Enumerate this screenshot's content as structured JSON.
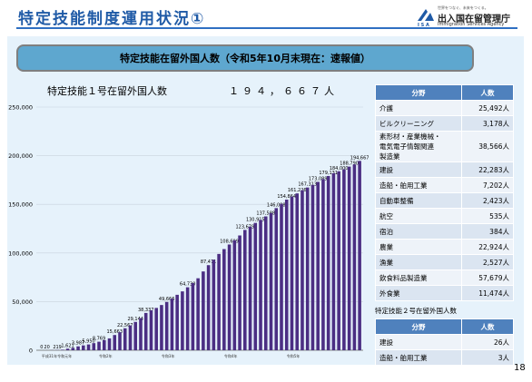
{
  "header": {
    "title": "特定技能制度運用状況①"
  },
  "logo": {
    "tagline": "世界をつなぐ、未来をつくる。",
    "name": "出入国在留管理庁",
    "english": "Immigration Services Agency",
    "abbr": "I S A"
  },
  "banner": "特定技能在留外国人数（令和5年10月末現在：速報値）",
  "subtitle": {
    "label": "特定技能１号在留外国人数",
    "value": "１９４，６６７人"
  },
  "page_number": "18",
  "chart_data": {
    "type": "bar",
    "title": "",
    "ylim": [
      0,
      250000
    ],
    "yticks": [
      "0",
      "50,000",
      "100,000",
      "150,000",
      "200,000",
      "250,000"
    ],
    "x_period_labels": [
      "平成31年",
      "令和元年",
      "令和2年",
      "令和3年",
      "令和4年",
      "令和5年"
    ],
    "x_period_index": [
      0,
      3,
      11,
      23,
      35,
      47
    ],
    "values": [
      0,
      20,
      100,
      219,
      520,
      1621,
      2500,
      3987,
      5000,
      5950,
      7300,
      8769,
      10400,
      12200,
      15663,
      18500,
      22567,
      25500,
      29144,
      33000,
      38337,
      41000,
      43500,
      46500,
      49666,
      53000,
      57000,
      60500,
      64730,
      69000,
      74000,
      81000,
      87471,
      93000,
      99000,
      104000,
      108699,
      113000,
      118000,
      123679,
      127000,
      130915,
      134000,
      137588,
      141000,
      146098,
      150500,
      154864,
      158000,
      161226,
      164500,
      167313,
      170000,
      173089,
      176000,
      179131,
      182000,
      184000,
      186000,
      188790,
      191000,
      194667
    ],
    "labels": {
      "0": "0",
      "1": "20",
      "3": "219",
      "5": "1,621",
      "7": "3,987",
      "9": "5,950",
      "11": "8,769",
      "14": "15,663",
      "16": "22,567",
      "18": "29,144",
      "20": "38,337",
      "24": "49,666",
      "28": "64,730",
      "32": "87,471",
      "36": "108,699",
      "39": "123,679",
      "41": "130,915",
      "43": "137,588",
      "45": "146,098",
      "47": "154,864",
      "49": "161,226",
      "51": "167,313",
      "53": "173,089",
      "55": "179,131",
      "57": "184,000",
      "59": "188,790",
      "61": "194,667"
    },
    "bar_color": "#4b2e83"
  },
  "table1": {
    "headers": [
      "分野",
      "人数"
    ],
    "rows": [
      {
        "field": "介護",
        "count": "25,492人"
      },
      {
        "field": "ビルクリーニング",
        "count": "3,178人"
      },
      {
        "field": "素形材・産業機械・\n電気電子情報関連\n製造業",
        "count": "38,566人"
      },
      {
        "field": "建設",
        "count": "22,283人"
      },
      {
        "field": "造船・舶用工業",
        "count": "7,202人"
      },
      {
        "field": "自動車整備",
        "count": "2,423人"
      },
      {
        "field": "航空",
        "count": "535人"
      },
      {
        "field": "宿泊",
        "count": "384人"
      },
      {
        "field": "農業",
        "count": "22,924人"
      },
      {
        "field": "漁業",
        "count": "2,527人"
      },
      {
        "field": "飲食料品製造業",
        "count": "57,679人"
      },
      {
        "field": "外食業",
        "count": "11,474人"
      }
    ]
  },
  "table2": {
    "title": "特定技能２号在留外国人数",
    "headers": [
      "分野",
      "人数"
    ],
    "rows": [
      {
        "field": "建設",
        "count": "26人"
      },
      {
        "field": "造船・舶用工業",
        "count": "3人"
      }
    ]
  }
}
